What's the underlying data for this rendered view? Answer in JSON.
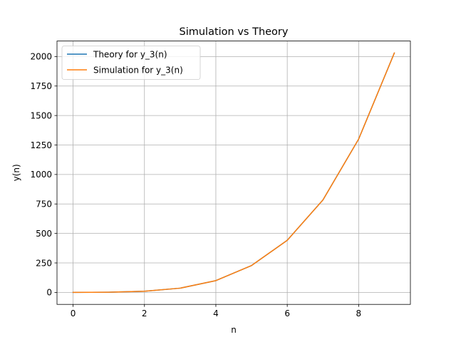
{
  "chart_data": {
    "type": "line",
    "title": "Simulation vs Theory",
    "xlabel": "n",
    "ylabel": "y(n)",
    "xlim": [
      -0.45,
      9.45
    ],
    "ylim": [
      -101.5,
      2131.5
    ],
    "x_ticks": [
      0,
      2,
      4,
      6,
      8
    ],
    "y_ticks": [
      0,
      250,
      500,
      750,
      1000,
      1250,
      1500,
      1750,
      2000
    ],
    "grid": true,
    "legend_position": "top-left",
    "x": [
      0,
      1,
      2,
      3,
      4,
      5,
      6,
      7,
      8,
      9
    ],
    "series": [
      {
        "name": "Theory for y_3(n)",
        "color": "#1f77b4",
        "values": [
          0,
          2,
          10,
          36,
          100,
          228,
          442,
          784,
          1300,
          2030
        ]
      },
      {
        "name": "Simulation for y_3(n)",
        "color": "#ff7f0e",
        "values": [
          0,
          2,
          10,
          36,
          100,
          228,
          442,
          784,
          1300,
          2030
        ]
      }
    ]
  }
}
